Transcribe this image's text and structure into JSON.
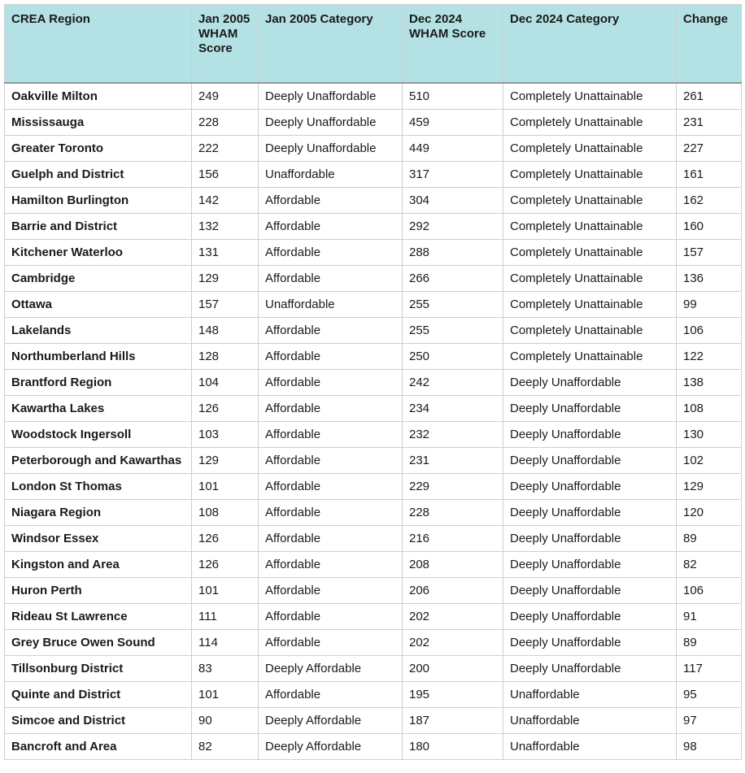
{
  "table": {
    "headers": [
      "CREA Region",
      "Jan 2005 WHAM Score",
      "Jan 2005 Category",
      "Dec 2024 WHAM Score",
      "Dec 2024 Category",
      "Change"
    ],
    "rows": [
      [
        "Oakville Milton",
        249,
        "Deeply Unaffordable",
        510,
        "Completely Unattainable",
        261
      ],
      [
        "Mississauga",
        228,
        "Deeply Unaffordable",
        459,
        "Completely Unattainable",
        231
      ],
      [
        "Greater Toronto",
        222,
        "Deeply Unaffordable",
        449,
        "Completely Unattainable",
        227
      ],
      [
        "Guelph and District",
        156,
        "Unaffordable",
        317,
        "Completely Unattainable",
        161
      ],
      [
        "Hamilton Burlington",
        142,
        "Affordable",
        304,
        "Completely Unattainable",
        162
      ],
      [
        "Barrie and District",
        132,
        "Affordable",
        292,
        "Completely Unattainable",
        160
      ],
      [
        "Kitchener Waterloo",
        131,
        "Affordable",
        288,
        "Completely Unattainable",
        157
      ],
      [
        "Cambridge",
        129,
        "Affordable",
        266,
        "Completely Unattainable",
        136
      ],
      [
        "Ottawa",
        157,
        "Unaffordable",
        255,
        "Completely Unattainable",
        99
      ],
      [
        "Lakelands",
        148,
        "Affordable",
        255,
        "Completely Unattainable",
        106
      ],
      [
        "Northumberland Hills",
        128,
        "Affordable",
        250,
        "Completely Unattainable",
        122
      ],
      [
        "Brantford Region",
        104,
        "Affordable",
        242,
        "Deeply Unaffordable",
        138
      ],
      [
        "Kawartha Lakes",
        126,
        "Affordable",
        234,
        "Deeply Unaffordable",
        108
      ],
      [
        "Woodstock Ingersoll",
        103,
        "Affordable",
        232,
        "Deeply Unaffordable",
        130
      ],
      [
        "Peterborough and Kawarthas",
        129,
        "Affordable",
        231,
        "Deeply Unaffordable",
        102
      ],
      [
        "London St Thomas",
        101,
        "Affordable",
        229,
        "Deeply Unaffordable",
        129
      ],
      [
        "Niagara Region",
        108,
        "Affordable",
        228,
        "Deeply Unaffordable",
        120
      ],
      [
        "Windsor Essex",
        126,
        "Affordable",
        216,
        "Deeply Unaffordable",
        89
      ],
      [
        "Kingston and Area",
        126,
        "Affordable",
        208,
        "Deeply Unaffordable",
        82
      ],
      [
        "Huron Perth",
        101,
        "Affordable",
        206,
        "Deeply Unaffordable",
        106
      ],
      [
        "Rideau St Lawrence",
        111,
        "Affordable",
        202,
        "Deeply Unaffordable",
        91
      ],
      [
        "Grey Bruce Owen Sound",
        114,
        "Affordable",
        202,
        "Deeply Unaffordable",
        89
      ],
      [
        "Tillsonburg District",
        83,
        "Deeply Affordable",
        200,
        "Deeply Unaffordable",
        117
      ],
      [
        "Quinte and District",
        101,
        "Affordable",
        195,
        "Unaffordable",
        95
      ],
      [
        "Simcoe and District",
        90,
        "Deeply Affordable",
        187,
        "Unaffordable",
        97
      ],
      [
        "Bancroft and Area",
        82,
        "Deeply Affordable",
        180,
        "Unaffordable",
        98
      ]
    ]
  }
}
